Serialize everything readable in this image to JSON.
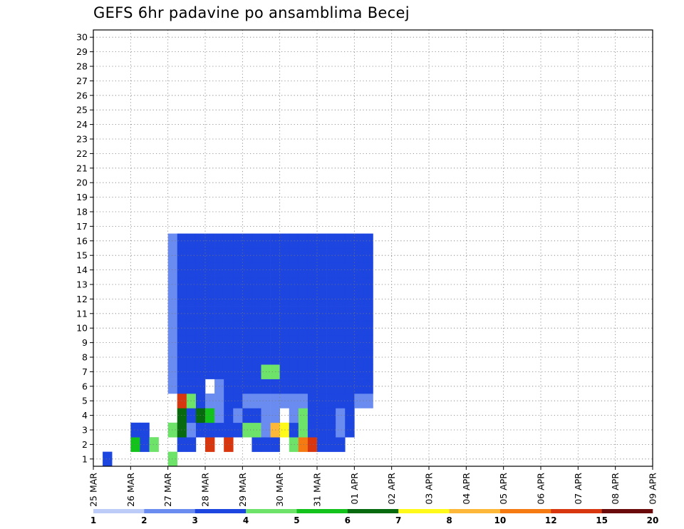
{
  "chart_data": {
    "type": "heatmap",
    "title": "GEFS 6hr padavine po ansamblima Becej",
    "x_labels": [
      "25 MAR",
      "26 MAR",
      "27 MAR",
      "28 MAR",
      "29 MAR",
      "30 MAR",
      "31 MAR",
      "01 APR",
      "02 APR",
      "03 APR",
      "04 APR",
      "05 APR",
      "06 APR",
      "07 APR",
      "08 APR",
      "09 APR"
    ],
    "y_labels": [
      "1",
      "2",
      "3",
      "4",
      "5",
      "6",
      "7",
      "8",
      "9",
      "10",
      "11",
      "12",
      "13",
      "14",
      "15",
      "16",
      "17",
      "18",
      "19",
      "20",
      "21",
      "22",
      "23",
      "24",
      "25",
      "26",
      "27",
      "28",
      "29",
      "30"
    ],
    "xlim": [
      0,
      60
    ],
    "ylim": [
      0,
      30
    ],
    "steps_per_day": 4,
    "grid": true,
    "colorbar": {
      "labels": [
        "1",
        "2",
        "3",
        "4",
        "5",
        "6",
        "7",
        "8",
        "10",
        "12",
        "15",
        "20"
      ],
      "colors": [
        "#bdcbf9",
        "#6a8cf0",
        "#1d45e0",
        "#6ee36a",
        "#13c21a",
        "#076a0e",
        "#fffa1a",
        "#fdb83a",
        "#f57a12",
        "#d8360f",
        "#6a0a0a"
      ]
    },
    "cells": [
      [
        1,
        0,
        2
      ],
      [
        8,
        0,
        3
      ],
      [
        4,
        1,
        4
      ],
      [
        5,
        1,
        2
      ],
      [
        6,
        1,
        3
      ],
      [
        9,
        1,
        2
      ],
      [
        10,
        1,
        2
      ],
      [
        12,
        1,
        9
      ],
      [
        14,
        1,
        9
      ],
      [
        17,
        1,
        2
      ],
      [
        18,
        1,
        2
      ],
      [
        19,
        1,
        2
      ],
      [
        21,
        1,
        3
      ],
      [
        22,
        1,
        8
      ],
      [
        23,
        1,
        9
      ],
      [
        24,
        1,
        2
      ],
      [
        25,
        1,
        2
      ],
      [
        26,
        1,
        2
      ],
      [
        4,
        2,
        2
      ],
      [
        5,
        2,
        2
      ],
      [
        8,
        2,
        3
      ],
      [
        9,
        2,
        5
      ],
      [
        10,
        2,
        1
      ],
      [
        11,
        2,
        2
      ],
      [
        12,
        2,
        2
      ],
      [
        13,
        2,
        2
      ],
      [
        14,
        2,
        2
      ],
      [
        15,
        2,
        2
      ],
      [
        16,
        2,
        3
      ],
      [
        17,
        2,
        3
      ],
      [
        18,
        2,
        1
      ],
      [
        19,
        2,
        7
      ],
      [
        20,
        2,
        6
      ],
      [
        21,
        2,
        2
      ],
      [
        22,
        2,
        3
      ],
      [
        23,
        2,
        2
      ],
      [
        24,
        2,
        2
      ],
      [
        25,
        2,
        2
      ],
      [
        26,
        2,
        1
      ],
      [
        27,
        2,
        2
      ],
      [
        9,
        3,
        5
      ],
      [
        10,
        3,
        2
      ],
      [
        11,
        3,
        5
      ],
      [
        12,
        3,
        4
      ],
      [
        13,
        3,
        1
      ],
      [
        14,
        3,
        2
      ],
      [
        15,
        3,
        1
      ],
      [
        16,
        3,
        2
      ],
      [
        17,
        3,
        2
      ],
      [
        18,
        3,
        1
      ],
      [
        19,
        3,
        1
      ],
      [
        21,
        3,
        1
      ],
      [
        22,
        3,
        3
      ],
      [
        23,
        3,
        2
      ],
      [
        24,
        3,
        2
      ],
      [
        25,
        3,
        2
      ],
      [
        26,
        3,
        1
      ],
      [
        27,
        3,
        2
      ],
      [
        9,
        4,
        9
      ],
      [
        10,
        4,
        3
      ],
      [
        11,
        4,
        2
      ],
      [
        12,
        4,
        1
      ],
      [
        13,
        4,
        1
      ],
      [
        14,
        4,
        2
      ],
      [
        15,
        4,
        2
      ],
      [
        16,
        4,
        1
      ],
      [
        17,
        4,
        1
      ],
      [
        18,
        4,
        1
      ],
      [
        19,
        4,
        1
      ],
      [
        20,
        4,
        1
      ],
      [
        21,
        4,
        1
      ],
      [
        22,
        4,
        1
      ],
      [
        23,
        4,
        2
      ],
      [
        24,
        4,
        2
      ],
      [
        25,
        4,
        2
      ],
      [
        26,
        4,
        2
      ],
      [
        27,
        4,
        2
      ],
      [
        28,
        4,
        1
      ],
      [
        29,
        4,
        1
      ],
      [
        8,
        5,
        1
      ],
      [
        9,
        5,
        2
      ],
      [
        10,
        5,
        2
      ],
      [
        11,
        5,
        2
      ],
      [
        13,
        5,
        1
      ],
      [
        14,
        5,
        2
      ],
      [
        15,
        5,
        2
      ],
      [
        16,
        5,
        2
      ],
      [
        17,
        5,
        2
      ],
      [
        18,
        5,
        2
      ],
      [
        19,
        5,
        2
      ],
      [
        20,
        5,
        2
      ],
      [
        21,
        5,
        2
      ],
      [
        22,
        5,
        2
      ],
      [
        23,
        5,
        2
      ],
      [
        24,
        5,
        2
      ],
      [
        25,
        5,
        2
      ],
      [
        26,
        5,
        2
      ],
      [
        27,
        5,
        2
      ],
      [
        28,
        5,
        2
      ],
      [
        29,
        5,
        2
      ],
      [
        8,
        6,
        1
      ],
      [
        9,
        6,
        2
      ],
      [
        10,
        6,
        2
      ],
      [
        11,
        6,
        2
      ],
      [
        12,
        6,
        2
      ],
      [
        13,
        6,
        2
      ],
      [
        14,
        6,
        2
      ],
      [
        15,
        6,
        2
      ],
      [
        16,
        6,
        2
      ],
      [
        17,
        6,
        2
      ],
      [
        18,
        6,
        3
      ],
      [
        19,
        6,
        3
      ],
      [
        20,
        6,
        2
      ],
      [
        21,
        6,
        2
      ],
      [
        22,
        6,
        2
      ],
      [
        23,
        6,
        2
      ],
      [
        24,
        6,
        2
      ],
      [
        25,
        6,
        2
      ],
      [
        26,
        6,
        2
      ],
      [
        27,
        6,
        2
      ],
      [
        28,
        6,
        2
      ],
      [
        29,
        6,
        2
      ],
      [
        8,
        7,
        1
      ],
      [
        9,
        7,
        2
      ],
      [
        10,
        7,
        2
      ],
      [
        11,
        7,
        2
      ],
      [
        12,
        7,
        2
      ],
      [
        13,
        7,
        2
      ],
      [
        14,
        7,
        2
      ],
      [
        15,
        7,
        2
      ],
      [
        16,
        7,
        2
      ],
      [
        17,
        7,
        2
      ],
      [
        18,
        7,
        2
      ],
      [
        19,
        7,
        2
      ],
      [
        20,
        7,
        2
      ],
      [
        21,
        7,
        2
      ],
      [
        22,
        7,
        2
      ],
      [
        23,
        7,
        2
      ],
      [
        24,
        7,
        2
      ],
      [
        25,
        7,
        2
      ],
      [
        26,
        7,
        2
      ],
      [
        27,
        7,
        2
      ],
      [
        28,
        7,
        2
      ],
      [
        29,
        7,
        2
      ],
      [
        8,
        8,
        1
      ],
      [
        9,
        8,
        2
      ],
      [
        10,
        8,
        2
      ],
      [
        11,
        8,
        2
      ],
      [
        12,
        8,
        2
      ],
      [
        13,
        8,
        2
      ],
      [
        14,
        8,
        2
      ],
      [
        15,
        8,
        2
      ],
      [
        16,
        8,
        2
      ],
      [
        17,
        8,
        2
      ],
      [
        18,
        8,
        2
      ],
      [
        19,
        8,
        2
      ],
      [
        20,
        8,
        2
      ],
      [
        21,
        8,
        2
      ],
      [
        22,
        8,
        2
      ],
      [
        23,
        8,
        2
      ],
      [
        24,
        8,
        2
      ],
      [
        25,
        8,
        2
      ],
      [
        26,
        8,
        2
      ],
      [
        27,
        8,
        2
      ],
      [
        28,
        8,
        2
      ],
      [
        29,
        8,
        2
      ],
      [
        8,
        9,
        1
      ],
      [
        9,
        9,
        2
      ],
      [
        10,
        9,
        2
      ],
      [
        11,
        9,
        2
      ],
      [
        12,
        9,
        2
      ],
      [
        13,
        9,
        2
      ],
      [
        14,
        9,
        2
      ],
      [
        15,
        9,
        2
      ],
      [
        16,
        9,
        2
      ],
      [
        17,
        9,
        2
      ],
      [
        18,
        9,
        2
      ],
      [
        19,
        9,
        2
      ],
      [
        20,
        9,
        2
      ],
      [
        21,
        9,
        2
      ],
      [
        22,
        9,
        2
      ],
      [
        23,
        9,
        2
      ],
      [
        24,
        9,
        2
      ],
      [
        25,
        9,
        2
      ],
      [
        26,
        9,
        2
      ],
      [
        27,
        9,
        2
      ],
      [
        28,
        9,
        2
      ],
      [
        29,
        9,
        2
      ],
      [
        8,
        10,
        1
      ],
      [
        9,
        10,
        2
      ],
      [
        10,
        10,
        2
      ],
      [
        11,
        10,
        2
      ],
      [
        12,
        10,
        2
      ],
      [
        13,
        10,
        2
      ],
      [
        14,
        10,
        2
      ],
      [
        15,
        10,
        2
      ],
      [
        16,
        10,
        2
      ],
      [
        17,
        10,
        2
      ],
      [
        18,
        10,
        2
      ],
      [
        19,
        10,
        2
      ],
      [
        20,
        10,
        2
      ],
      [
        21,
        10,
        2
      ],
      [
        22,
        10,
        2
      ],
      [
        23,
        10,
        2
      ],
      [
        24,
        10,
        2
      ],
      [
        25,
        10,
        2
      ],
      [
        26,
        10,
        2
      ],
      [
        27,
        10,
        2
      ],
      [
        28,
        10,
        2
      ],
      [
        29,
        10,
        2
      ],
      [
        8,
        11,
        1
      ],
      [
        9,
        11,
        2
      ],
      [
        10,
        11,
        2
      ],
      [
        11,
        11,
        2
      ],
      [
        12,
        11,
        2
      ],
      [
        13,
        11,
        2
      ],
      [
        14,
        11,
        2
      ],
      [
        15,
        11,
        2
      ],
      [
        16,
        11,
        2
      ],
      [
        17,
        11,
        2
      ],
      [
        18,
        11,
        2
      ],
      [
        19,
        11,
        2
      ],
      [
        20,
        11,
        2
      ],
      [
        21,
        11,
        2
      ],
      [
        22,
        11,
        2
      ],
      [
        23,
        11,
        2
      ],
      [
        24,
        11,
        2
      ],
      [
        25,
        11,
        2
      ],
      [
        26,
        11,
        2
      ],
      [
        27,
        11,
        2
      ],
      [
        28,
        11,
        2
      ],
      [
        29,
        11,
        2
      ],
      [
        8,
        12,
        1
      ],
      [
        9,
        12,
        2
      ],
      [
        10,
        12,
        2
      ],
      [
        11,
        12,
        2
      ],
      [
        12,
        12,
        2
      ],
      [
        13,
        12,
        2
      ],
      [
        14,
        12,
        2
      ],
      [
        15,
        12,
        2
      ],
      [
        16,
        12,
        2
      ],
      [
        17,
        12,
        2
      ],
      [
        18,
        12,
        2
      ],
      [
        19,
        12,
        2
      ],
      [
        20,
        12,
        2
      ],
      [
        21,
        12,
        2
      ],
      [
        22,
        12,
        2
      ],
      [
        23,
        12,
        2
      ],
      [
        24,
        12,
        2
      ],
      [
        25,
        12,
        2
      ],
      [
        26,
        12,
        2
      ],
      [
        27,
        12,
        2
      ],
      [
        28,
        12,
        2
      ],
      [
        29,
        12,
        2
      ],
      [
        8,
        13,
        1
      ],
      [
        9,
        13,
        2
      ],
      [
        10,
        13,
        2
      ],
      [
        11,
        13,
        2
      ],
      [
        12,
        13,
        2
      ],
      [
        13,
        13,
        2
      ],
      [
        14,
        13,
        2
      ],
      [
        15,
        13,
        2
      ],
      [
        16,
        13,
        2
      ],
      [
        17,
        13,
        2
      ],
      [
        18,
        13,
        2
      ],
      [
        19,
        13,
        2
      ],
      [
        20,
        13,
        2
      ],
      [
        21,
        13,
        2
      ],
      [
        22,
        13,
        2
      ],
      [
        23,
        13,
        2
      ],
      [
        24,
        13,
        2
      ],
      [
        25,
        13,
        2
      ],
      [
        26,
        13,
        2
      ],
      [
        27,
        13,
        2
      ],
      [
        28,
        13,
        2
      ],
      [
        29,
        13,
        2
      ],
      [
        8,
        14,
        1
      ],
      [
        9,
        14,
        2
      ],
      [
        10,
        14,
        2
      ],
      [
        11,
        14,
        2
      ],
      [
        12,
        14,
        2
      ],
      [
        13,
        14,
        2
      ],
      [
        14,
        14,
        2
      ],
      [
        15,
        14,
        2
      ],
      [
        16,
        14,
        2
      ],
      [
        17,
        14,
        2
      ],
      [
        18,
        14,
        2
      ],
      [
        19,
        14,
        2
      ],
      [
        20,
        14,
        2
      ],
      [
        21,
        14,
        2
      ],
      [
        22,
        14,
        2
      ],
      [
        23,
        14,
        2
      ],
      [
        24,
        14,
        2
      ],
      [
        25,
        14,
        2
      ],
      [
        26,
        14,
        2
      ],
      [
        27,
        14,
        2
      ],
      [
        28,
        14,
        2
      ],
      [
        29,
        14,
        2
      ],
      [
        8,
        15,
        1
      ],
      [
        9,
        15,
        2
      ],
      [
        10,
        15,
        2
      ],
      [
        11,
        15,
        2
      ],
      [
        12,
        15,
        2
      ],
      [
        13,
        15,
        2
      ],
      [
        14,
        15,
        2
      ],
      [
        15,
        15,
        2
      ],
      [
        16,
        15,
        2
      ],
      [
        17,
        15,
        2
      ],
      [
        18,
        15,
        2
      ],
      [
        19,
        15,
        2
      ],
      [
        20,
        15,
        2
      ],
      [
        21,
        15,
        2
      ],
      [
        22,
        15,
        2
      ],
      [
        23,
        15,
        2
      ],
      [
        24,
        15,
        2
      ],
      [
        25,
        15,
        2
      ],
      [
        26,
        15,
        2
      ],
      [
        27,
        15,
        2
      ],
      [
        28,
        15,
        2
      ],
      [
        29,
        15,
        2
      ]
    ]
  }
}
